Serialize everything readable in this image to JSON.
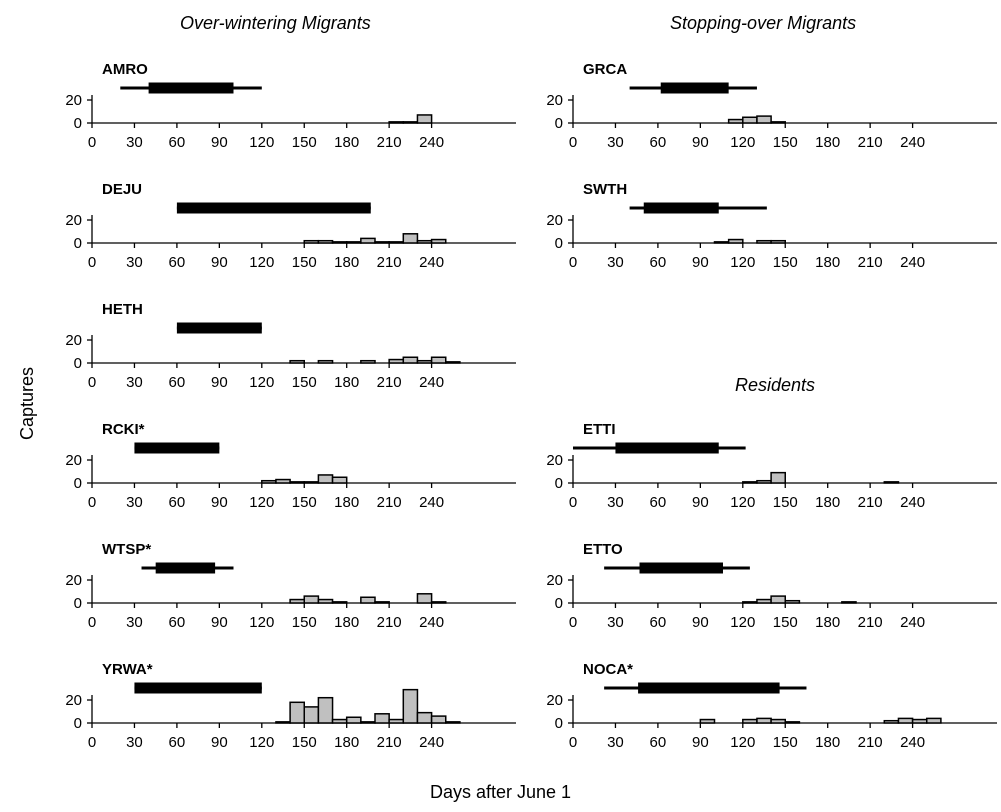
{
  "headings": {
    "left": "Over-wintering Migrants",
    "right_top": "Stopping-over Migrants",
    "residents": "Residents"
  },
  "axis": {
    "ylabel": "Captures",
    "xlabel": "Days after June 1"
  },
  "chart_data": {
    "type": "bar",
    "ylim": [
      0,
      30
    ],
    "yticks": [
      0,
      20
    ],
    "xticks": [
      0,
      30,
      60,
      90,
      120,
      150,
      180,
      210,
      240
    ],
    "xlim": [
      0,
      265
    ],
    "bin_width": 10,
    "panels": [
      {
        "code": "AMRO",
        "thin": [
          20,
          120
        ],
        "thick": [
          40,
          100
        ],
        "bins": [
          {
            "x": 215,
            "y": 1
          },
          {
            "x": 225,
            "y": 1
          },
          {
            "x": 235,
            "y": 7
          }
        ]
      },
      {
        "code": "DEJU",
        "thin": [
          60,
          197
        ],
        "thick": [
          60,
          197
        ],
        "bins": [
          {
            "x": 155,
            "y": 2
          },
          {
            "x": 165,
            "y": 2
          },
          {
            "x": 175,
            "y": 1
          },
          {
            "x": 185,
            "y": 1
          },
          {
            "x": 195,
            "y": 4
          },
          {
            "x": 205,
            "y": 1
          },
          {
            "x": 215,
            "y": 1
          },
          {
            "x": 225,
            "y": 8
          },
          {
            "x": 235,
            "y": 2
          },
          {
            "x": 245,
            "y": 3
          }
        ]
      },
      {
        "code": "HETH",
        "thin": [
          60,
          120
        ],
        "thick": [
          60,
          120
        ],
        "bins": [
          {
            "x": 145,
            "y": 2
          },
          {
            "x": 165,
            "y": 2
          },
          {
            "x": 195,
            "y": 2
          },
          {
            "x": 215,
            "y": 3
          },
          {
            "x": 225,
            "y": 5
          },
          {
            "x": 235,
            "y": 2
          },
          {
            "x": 245,
            "y": 5
          },
          {
            "x": 255,
            "y": 1
          }
        ]
      },
      {
        "code": "RCKI*",
        "thin": [
          30,
          90
        ],
        "thick": [
          30,
          90
        ],
        "bins": [
          {
            "x": 125,
            "y": 2
          },
          {
            "x": 135,
            "y": 3
          },
          {
            "x": 145,
            "y": 1
          },
          {
            "x": 155,
            "y": 1
          },
          {
            "x": 165,
            "y": 7
          },
          {
            "x": 175,
            "y": 5
          }
        ]
      },
      {
        "code": "WTSP*",
        "thin": [
          35,
          100
        ],
        "thick": [
          45,
          87
        ],
        "bins": [
          {
            "x": 145,
            "y": 3
          },
          {
            "x": 155,
            "y": 6
          },
          {
            "x": 165,
            "y": 3
          },
          {
            "x": 175,
            "y": 1
          },
          {
            "x": 195,
            "y": 5
          },
          {
            "x": 205,
            "y": 1
          },
          {
            "x": 235,
            "y": 8
          },
          {
            "x": 245,
            "y": 1
          }
        ]
      },
      {
        "code": "YRWA*",
        "thin": [
          30,
          120
        ],
        "thick": [
          30,
          120
        ],
        "bins": [
          {
            "x": 135,
            "y": 1
          },
          {
            "x": 145,
            "y": 18
          },
          {
            "x": 155,
            "y": 14
          },
          {
            "x": 165,
            "y": 22
          },
          {
            "x": 175,
            "y": 3
          },
          {
            "x": 185,
            "y": 5
          },
          {
            "x": 195,
            "y": 1
          },
          {
            "x": 205,
            "y": 8
          },
          {
            "x": 215,
            "y": 3
          },
          {
            "x": 225,
            "y": 29
          },
          {
            "x": 235,
            "y": 9
          },
          {
            "x": 245,
            "y": 6
          },
          {
            "x": 255,
            "y": 1
          }
        ]
      },
      {
        "code": "GRCA",
        "thin": [
          40,
          130
        ],
        "thick": [
          62,
          110
        ],
        "bins": [
          {
            "x": 115,
            "y": 3
          },
          {
            "x": 125,
            "y": 5
          },
          {
            "x": 135,
            "y": 6
          },
          {
            "x": 145,
            "y": 1
          }
        ]
      },
      {
        "code": "SWTH",
        "thin": [
          40,
          137
        ],
        "thick": [
          50,
          103
        ],
        "bins": [
          {
            "x": 105,
            "y": 1
          },
          {
            "x": 115,
            "y": 3
          },
          {
            "x": 125,
            "y": 0
          },
          {
            "x": 135,
            "y": 2
          },
          {
            "x": 145,
            "y": 2
          }
        ]
      },
      {
        "code": "ETTI",
        "thin": [
          0,
          122
        ],
        "thick": [
          30,
          103
        ],
        "bins": [
          {
            "x": 125,
            "y": 1
          },
          {
            "x": 135,
            "y": 2
          },
          {
            "x": 145,
            "y": 9
          },
          {
            "x": 225,
            "y": 1
          }
        ]
      },
      {
        "code": "ETTO",
        "thin": [
          22,
          125
        ],
        "thick": [
          47,
          106
        ],
        "bins": [
          {
            "x": 125,
            "y": 1
          },
          {
            "x": 135,
            "y": 3
          },
          {
            "x": 145,
            "y": 6
          },
          {
            "x": 155,
            "y": 2
          },
          {
            "x": 195,
            "y": 1
          }
        ]
      },
      {
        "code": "NOCA*",
        "thin": [
          22,
          165
        ],
        "thick": [
          46,
          146
        ],
        "bins": [
          {
            "x": 95,
            "y": 3
          },
          {
            "x": 125,
            "y": 3
          },
          {
            "x": 135,
            "y": 4
          },
          {
            "x": 145,
            "y": 3
          },
          {
            "x": 155,
            "y": 1
          },
          {
            "x": 225,
            "y": 2
          },
          {
            "x": 235,
            "y": 4
          },
          {
            "x": 245,
            "y": 3
          },
          {
            "x": 255,
            "y": 4
          }
        ]
      }
    ]
  },
  "colors": {
    "bar_fill": "#c0c0c0",
    "bar_stroke": "#000000",
    "line": "#000000"
  }
}
